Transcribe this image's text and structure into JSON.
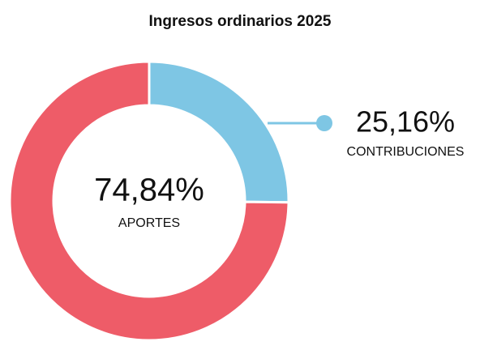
{
  "chart_data": {
    "type": "pie",
    "title": "Ingresos ordinarios 2025",
    "categories": [
      "CONTRIBUCIONES",
      "APORTES"
    ],
    "values": [
      25.16,
      74.84
    ],
    "value_labels": [
      "25,16%",
      "74,84%"
    ],
    "colors": [
      "#7ec6e4",
      "#ee5c68"
    ]
  }
}
